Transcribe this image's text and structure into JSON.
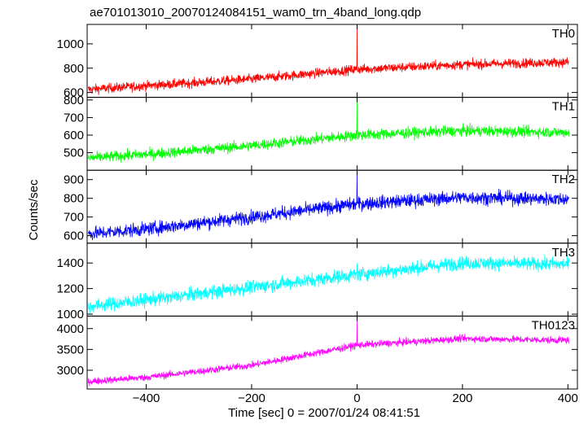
{
  "title": "ae701013010_20070124084151_wam0_trn_4band_long.qdp",
  "xlabel": "Time [sec] 0 = 2007/01/24 08:41:51",
  "ylabel": "Counts/sec",
  "chart_data": {
    "type": "line",
    "x_range": [
      -510,
      402
    ],
    "xlim": [
      -512,
      418
    ],
    "x_ticks": [
      -400,
      -200,
      0,
      200,
      400
    ],
    "x_tick_labels": [
      "−400",
      "−200",
      "0",
      "200",
      "400"
    ],
    "grid": false,
    "panels": [
      {
        "name": "TH0",
        "color": "#ff0000",
        "ylim": [
          560,
          1160
        ],
        "y_ticks": [
          600,
          800,
          1000
        ],
        "y_tick_labels": [
          "600",
          "800",
          "1000"
        ],
        "trend": [
          [
            -510,
            625
          ],
          [
            -400,
            655
          ],
          [
            -200,
            710
          ],
          [
            0,
            790
          ],
          [
            200,
            830
          ],
          [
            400,
            850
          ]
        ],
        "noise_amplitude": 28,
        "spike": {
          "x": 0,
          "y": 1140
        }
      },
      {
        "name": "TH1",
        "color": "#00ff00",
        "ylim": [
          400,
          815
        ],
        "y_ticks": [
          500,
          600,
          700,
          800
        ],
        "y_tick_labels": [
          "500",
          "600",
          "700",
          "800"
        ],
        "trend": [
          [
            -510,
            470
          ],
          [
            -400,
            490
          ],
          [
            -200,
            540
          ],
          [
            0,
            600
          ],
          [
            200,
            625
          ],
          [
            400,
            615
          ]
        ],
        "noise_amplitude": 22,
        "spike": {
          "x": 0,
          "y": 815
        }
      },
      {
        "name": "TH2",
        "color": "#0000ff",
        "ylim": [
          560,
          950
        ],
        "y_ticks": [
          600,
          700,
          800,
          900
        ],
        "y_tick_labels": [
          "600",
          "700",
          "800",
          "900"
        ],
        "trend": [
          [
            -510,
            610
          ],
          [
            -400,
            635
          ],
          [
            -200,
            700
          ],
          [
            0,
            770
          ],
          [
            200,
            805
          ],
          [
            400,
            795
          ]
        ],
        "noise_amplitude": 26,
        "spike": {
          "x": 0,
          "y": 935
        }
      },
      {
        "name": "TH3",
        "color": "#00ffff",
        "ylim": [
          985,
          1555
        ],
        "y_ticks": [
          1000,
          1200,
          1400
        ],
        "y_tick_labels": [
          "1000",
          "1200",
          "1400"
        ],
        "trend": [
          [
            -510,
            1060
          ],
          [
            -400,
            1110
          ],
          [
            -200,
            1210
          ],
          [
            0,
            1310
          ],
          [
            200,
            1400
          ],
          [
            400,
            1390
          ]
        ],
        "noise_amplitude": 38,
        "spike": {
          "x": 0,
          "y": 1400
        }
      },
      {
        "name": "TH0123",
        "color": "#ff00ff",
        "ylim": [
          2550,
          4300
        ],
        "y_ticks": [
          3000,
          3500,
          4000
        ],
        "y_tick_labels": [
          "3000",
          "3500",
          "4000"
        ],
        "trend": [
          [
            -510,
            2730
          ],
          [
            -400,
            2830
          ],
          [
            -200,
            3120
          ],
          [
            0,
            3600
          ],
          [
            200,
            3760
          ],
          [
            400,
            3720
          ]
        ],
        "noise_amplitude": 60,
        "spike": {
          "x": 0,
          "y": 4220
        }
      }
    ]
  }
}
